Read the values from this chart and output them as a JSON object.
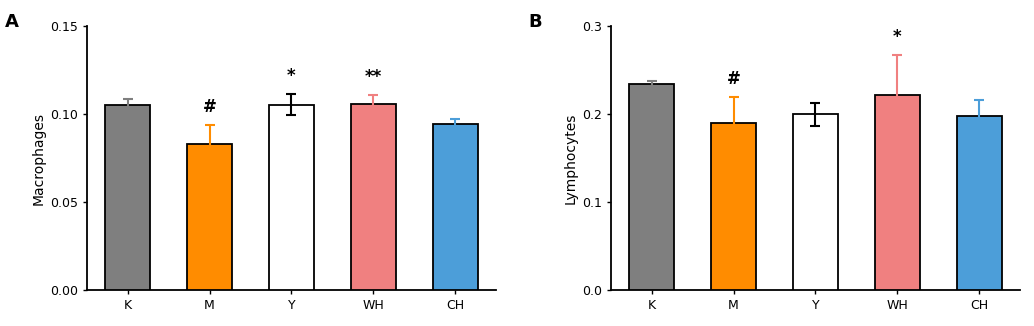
{
  "panel_A": {
    "label": "A",
    "categories": [
      "K",
      "M",
      "Y",
      "WH",
      "CH"
    ],
    "values": [
      0.1055,
      0.083,
      0.1055,
      0.106,
      0.0945
    ],
    "errors": [
      0.0035,
      0.011,
      0.006,
      0.005,
      0.003
    ],
    "bar_colors": [
      "#7f7f7f",
      "#FF8C00",
      "#FFFFFF",
      "#F08080",
      "#4C9ED9"
    ],
    "edge_colors": [
      "#000000",
      "#000000",
      "#000000",
      "#000000",
      "#000000"
    ],
    "error_colors": [
      "#7f7f7f",
      "#FF8C00",
      "#000000",
      "#F08080",
      "#4C9ED9"
    ],
    "ylabel": "Macrophages",
    "ylim": [
      0.0,
      0.15
    ],
    "yticks": [
      0.0,
      0.05,
      0.1,
      0.15
    ],
    "ytick_labels": [
      "0.00",
      "0.05",
      "0.10",
      "0.15"
    ],
    "annotations": [
      {
        "text": "#",
        "x": 1,
        "color": "#000000"
      },
      {
        "text": "*",
        "x": 2,
        "color": "#000000"
      },
      {
        "text": "**",
        "x": 3,
        "color": "#000000"
      }
    ]
  },
  "panel_B": {
    "label": "B",
    "categories": [
      "K",
      "M",
      "Y",
      "WH",
      "CH"
    ],
    "values": [
      0.235,
      0.19,
      0.2,
      0.222,
      0.198
    ],
    "errors": [
      0.003,
      0.03,
      0.013,
      0.045,
      0.018
    ],
    "bar_colors": [
      "#7f7f7f",
      "#FF8C00",
      "#FFFFFF",
      "#F08080",
      "#4C9ED9"
    ],
    "edge_colors": [
      "#000000",
      "#000000",
      "#000000",
      "#000000",
      "#000000"
    ],
    "error_colors": [
      "#7f7f7f",
      "#FF8C00",
      "#000000",
      "#F08080",
      "#4C9ED9"
    ],
    "ylabel": "Lymphocytes",
    "ylim": [
      0.0,
      0.3
    ],
    "yticks": [
      0.0,
      0.1,
      0.2,
      0.3
    ],
    "ytick_labels": [
      "0.0",
      "0.1",
      "0.2",
      "0.3"
    ],
    "annotations": [
      {
        "text": "#",
        "x": 1,
        "color": "#000000"
      },
      {
        "text": "*",
        "x": 3,
        "color": "#000000"
      }
    ]
  },
  "bar_width": 0.55,
  "fontsize_label": 10,
  "fontsize_tick": 9,
  "fontsize_panel": 13,
  "fontsize_annot": 12
}
